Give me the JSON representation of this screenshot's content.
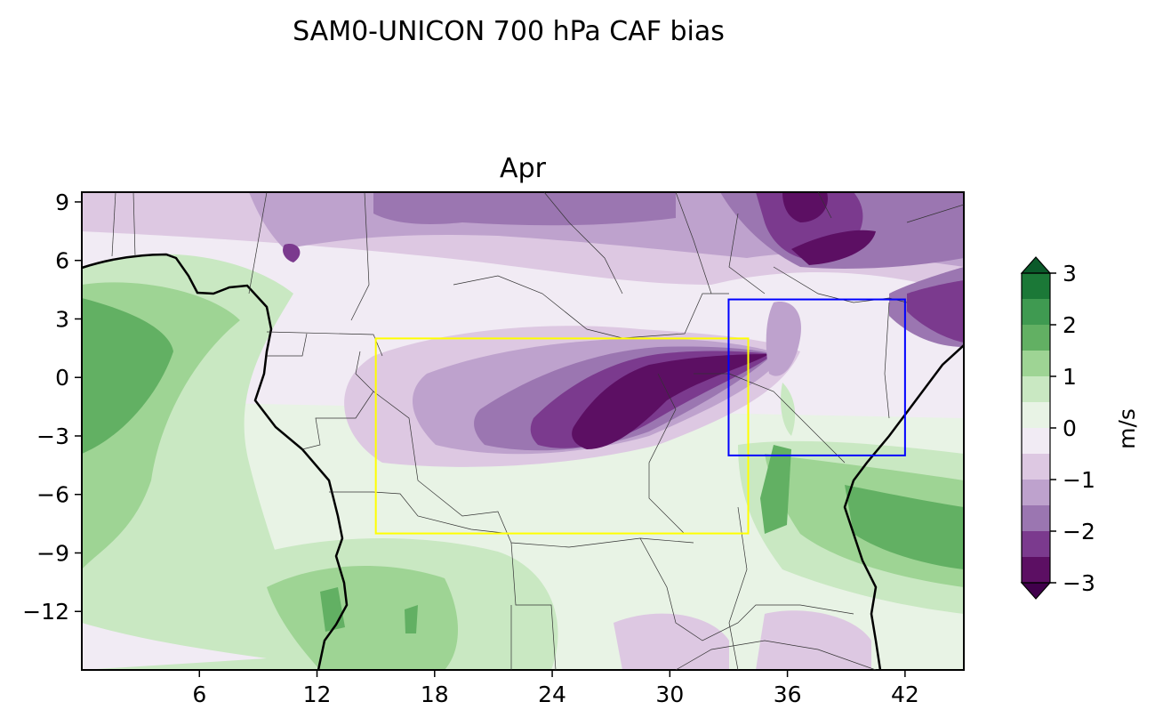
{
  "figure": {
    "suptitle": "SAM0-UNICON 700 hPa CAF bias",
    "panel_title": "Apr"
  },
  "map": {
    "lon_range": [
      0,
      45
    ],
    "lat_range": [
      -15,
      9.5
    ],
    "x_ticks": [
      "6",
      "12",
      "18",
      "24",
      "30",
      "36",
      "42"
    ],
    "y_ticks": [
      "9",
      "6",
      "3",
      "0",
      "−3",
      "−6",
      "−9",
      "−12"
    ],
    "boxes": [
      {
        "name": "yellow-region-box",
        "lon": [
          15,
          34
        ],
        "lat": [
          -8,
          2
        ],
        "color": "#ffff00"
      },
      {
        "name": "blue-region-box",
        "lon": [
          33,
          42
        ],
        "lat": [
          -4,
          4
        ],
        "color": "#0000ff"
      }
    ]
  },
  "colorbar": {
    "label": "m/s",
    "ticks": [
      "3",
      "2",
      "1",
      "0",
      "−1",
      "−2",
      "−3"
    ],
    "levels": [
      3,
      2.5,
      2,
      1.5,
      1,
      0.5,
      0,
      -0.5,
      -1,
      -1.5,
      -2,
      -2.5,
      -3
    ],
    "colors": [
      "#1b7837",
      "#3f9a51",
      "#62b063",
      "#9ed494",
      "#c9e8c2",
      "#e8f3e5",
      "#f1ebf4",
      "#ddc8e2",
      "#bea2cd",
      "#9b76b1",
      "#7b3a8e",
      "#5c0f63"
    ],
    "extend": "both"
  }
}
